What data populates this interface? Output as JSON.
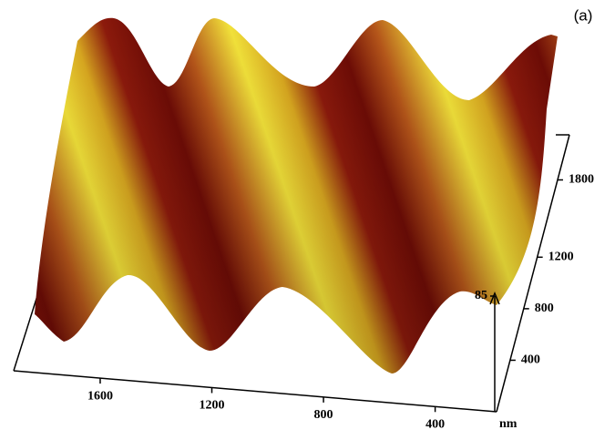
{
  "chart_data": {
    "type": "surface",
    "label": "(a)",
    "unit": "nm",
    "xlim": [
      1910,
      180
    ],
    "xticks": [
      1600,
      1200,
      800,
      400
    ],
    "ylim": [
      0,
      2150
    ],
    "yticks": [
      400,
      800,
      1200,
      1800
    ],
    "zlim": [
      0,
      85
    ],
    "zticks": [
      85
    ]
  }
}
